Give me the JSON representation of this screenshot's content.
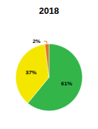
{
  "chart_data": {
    "type": "pie",
    "title": "2018",
    "values": [
      61,
      37,
      2
    ],
    "value_labels": [
      "61%",
      "37%",
      "2%"
    ],
    "colors": [
      "#33b54a",
      "#f5e600",
      "#e07820"
    ],
    "data_labels": true
  }
}
